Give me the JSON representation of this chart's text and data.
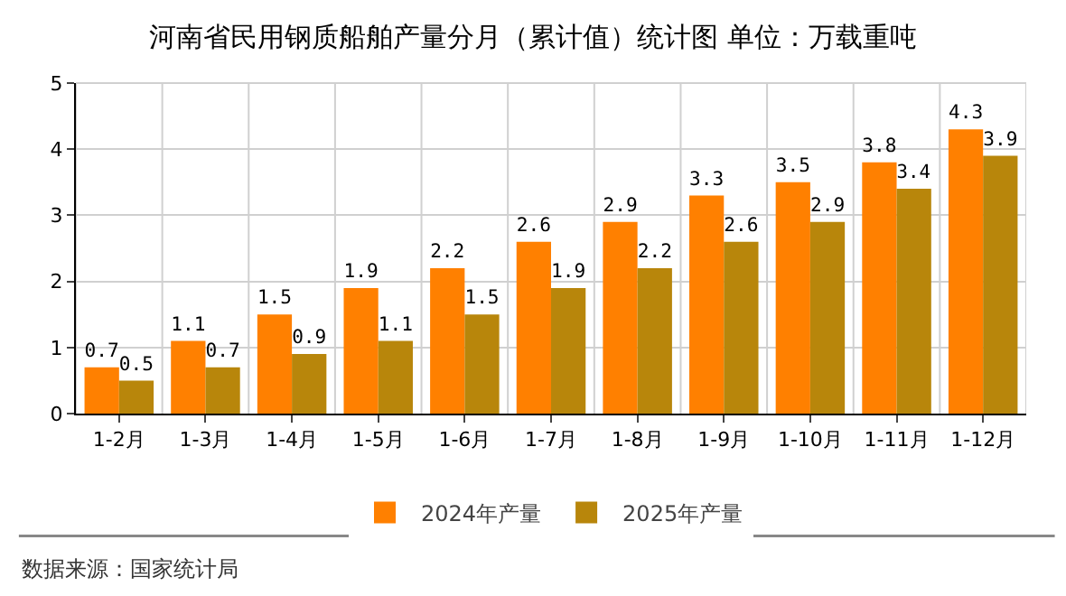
{
  "chart_data": {
    "type": "bar",
    "title": "河南省民用钢质船舶产量分月（累计值）统计图 单位：万载重吨",
    "categories": [
      "1-2月",
      "1-3月",
      "1-4月",
      "1-5月",
      "1-6月",
      "1-7月",
      "1-8月",
      "1-9月",
      "1-10月",
      "1-11月",
      "1-12月"
    ],
    "series": [
      {
        "name": "2024年产量",
        "color": "#ff8000",
        "values": [
          0.7,
          1.1,
          1.5,
          1.9,
          2.2,
          2.6,
          2.9,
          3.3,
          3.5,
          3.8,
          4.3
        ]
      },
      {
        "name": "2025年产量",
        "color": "#b8860b",
        "values": [
          0.5,
          0.7,
          0.9,
          1.1,
          1.5,
          1.9,
          2.2,
          2.6,
          2.9,
          3.4,
          3.9
        ]
      }
    ],
    "ylim": [
      0,
      5
    ],
    "yticks": [
      0,
      1,
      2,
      3,
      4,
      5
    ],
    "grid": true,
    "legend": "bottom",
    "data_labels": true,
    "annotations": [
      "数据来源：国家统计局"
    ]
  }
}
